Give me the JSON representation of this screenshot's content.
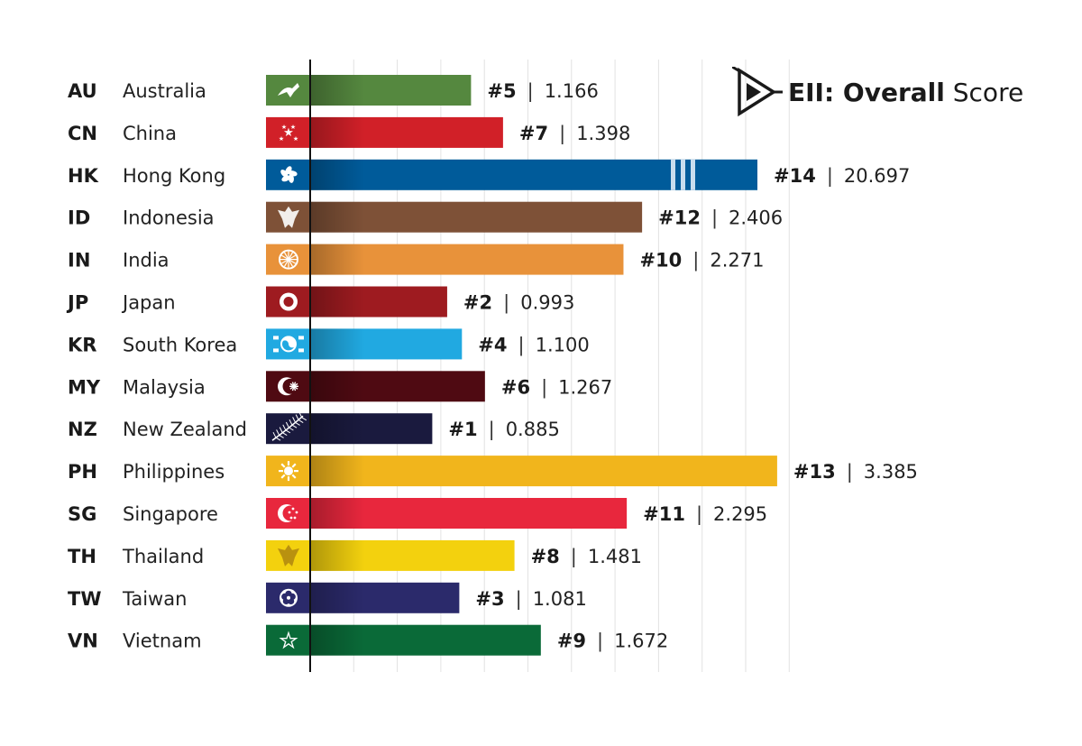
{
  "legend": {
    "title_bold": "EII: Overall",
    "title_light": "Score",
    "icon": "triangle-arrow-logo-icon"
  },
  "colors": {
    "AU": "#55883f",
    "CN": "#d12028",
    "HK": "#005b9a",
    "ID": "#7e5137",
    "IN": "#e8923a",
    "JP": "#9e1b20",
    "KR": "#21a9e1",
    "MY": "#4f0a12",
    "NZ": "#1a1a3e",
    "PH": "#f1b51c",
    "SG": "#e8273d",
    "TH": "#f3d10e",
    "TW": "#2b2a6b",
    "VN": "#0a6a38"
  },
  "chart_data": {
    "type": "bar",
    "orientation": "horizontal",
    "title": "EII: Overall Score",
    "axis_break": {
      "category": "HK",
      "note": "bar truncated with break marks"
    },
    "grid": true,
    "rows": [
      {
        "code": "AU",
        "name": "Australia",
        "rank": "#5",
        "value": 1.166,
        "score_label": "1.166",
        "flag_icon": "kangaroo-icon"
      },
      {
        "code": "CN",
        "name": "China",
        "rank": "#7",
        "value": 1.398,
        "score_label": "1.398",
        "flag_icon": "stars-icon"
      },
      {
        "code": "HK",
        "name": "Hong Kong",
        "rank": "#14",
        "value": 20.697,
        "score_label": "20.697",
        "flag_icon": "bauhinia-icon"
      },
      {
        "code": "ID",
        "name": "Indonesia",
        "rank": "#12",
        "value": 2.406,
        "score_label": "2.406",
        "flag_icon": "garuda-icon"
      },
      {
        "code": "IN",
        "name": "India",
        "rank": "#10",
        "value": 2.271,
        "score_label": "2.271",
        "flag_icon": "chakra-icon"
      },
      {
        "code": "JP",
        "name": "Japan",
        "rank": "#2",
        "value": 0.993,
        "score_label": "0.993",
        "flag_icon": "sun-disc-icon"
      },
      {
        "code": "KR",
        "name": "South Korea",
        "rank": "#4",
        "value": 1.1,
        "score_label": "1.100",
        "flag_icon": "taegeuk-icon"
      },
      {
        "code": "MY",
        "name": "Malaysia",
        "rank": "#6",
        "value": 1.267,
        "score_label": "1.267",
        "flag_icon": "crescent-star-icon"
      },
      {
        "code": "NZ",
        "name": "New Zealand",
        "rank": "#1",
        "value": 0.885,
        "score_label": "0.885",
        "flag_icon": "silver-fern-icon"
      },
      {
        "code": "PH",
        "name": "Philippines",
        "rank": "#13",
        "value": 3.385,
        "score_label": "3.385",
        "flag_icon": "sun-rays-icon"
      },
      {
        "code": "SG",
        "name": "Singapore",
        "rank": "#11",
        "value": 2.295,
        "score_label": "2.295",
        "flag_icon": "crescent-stars-icon"
      },
      {
        "code": "TH",
        "name": "Thailand",
        "rank": "#8",
        "value": 1.481,
        "score_label": "1.481",
        "flag_icon": "garuda-emblem-icon"
      },
      {
        "code": "TW",
        "name": "Taiwan",
        "rank": "#3",
        "value": 1.081,
        "score_label": "1.081",
        "flag_icon": "plum-blossom-icon"
      },
      {
        "code": "VN",
        "name": "Vietnam",
        "rank": "#9",
        "value": 1.672,
        "score_label": "1.672",
        "flag_icon": "star-icon"
      }
    ]
  }
}
